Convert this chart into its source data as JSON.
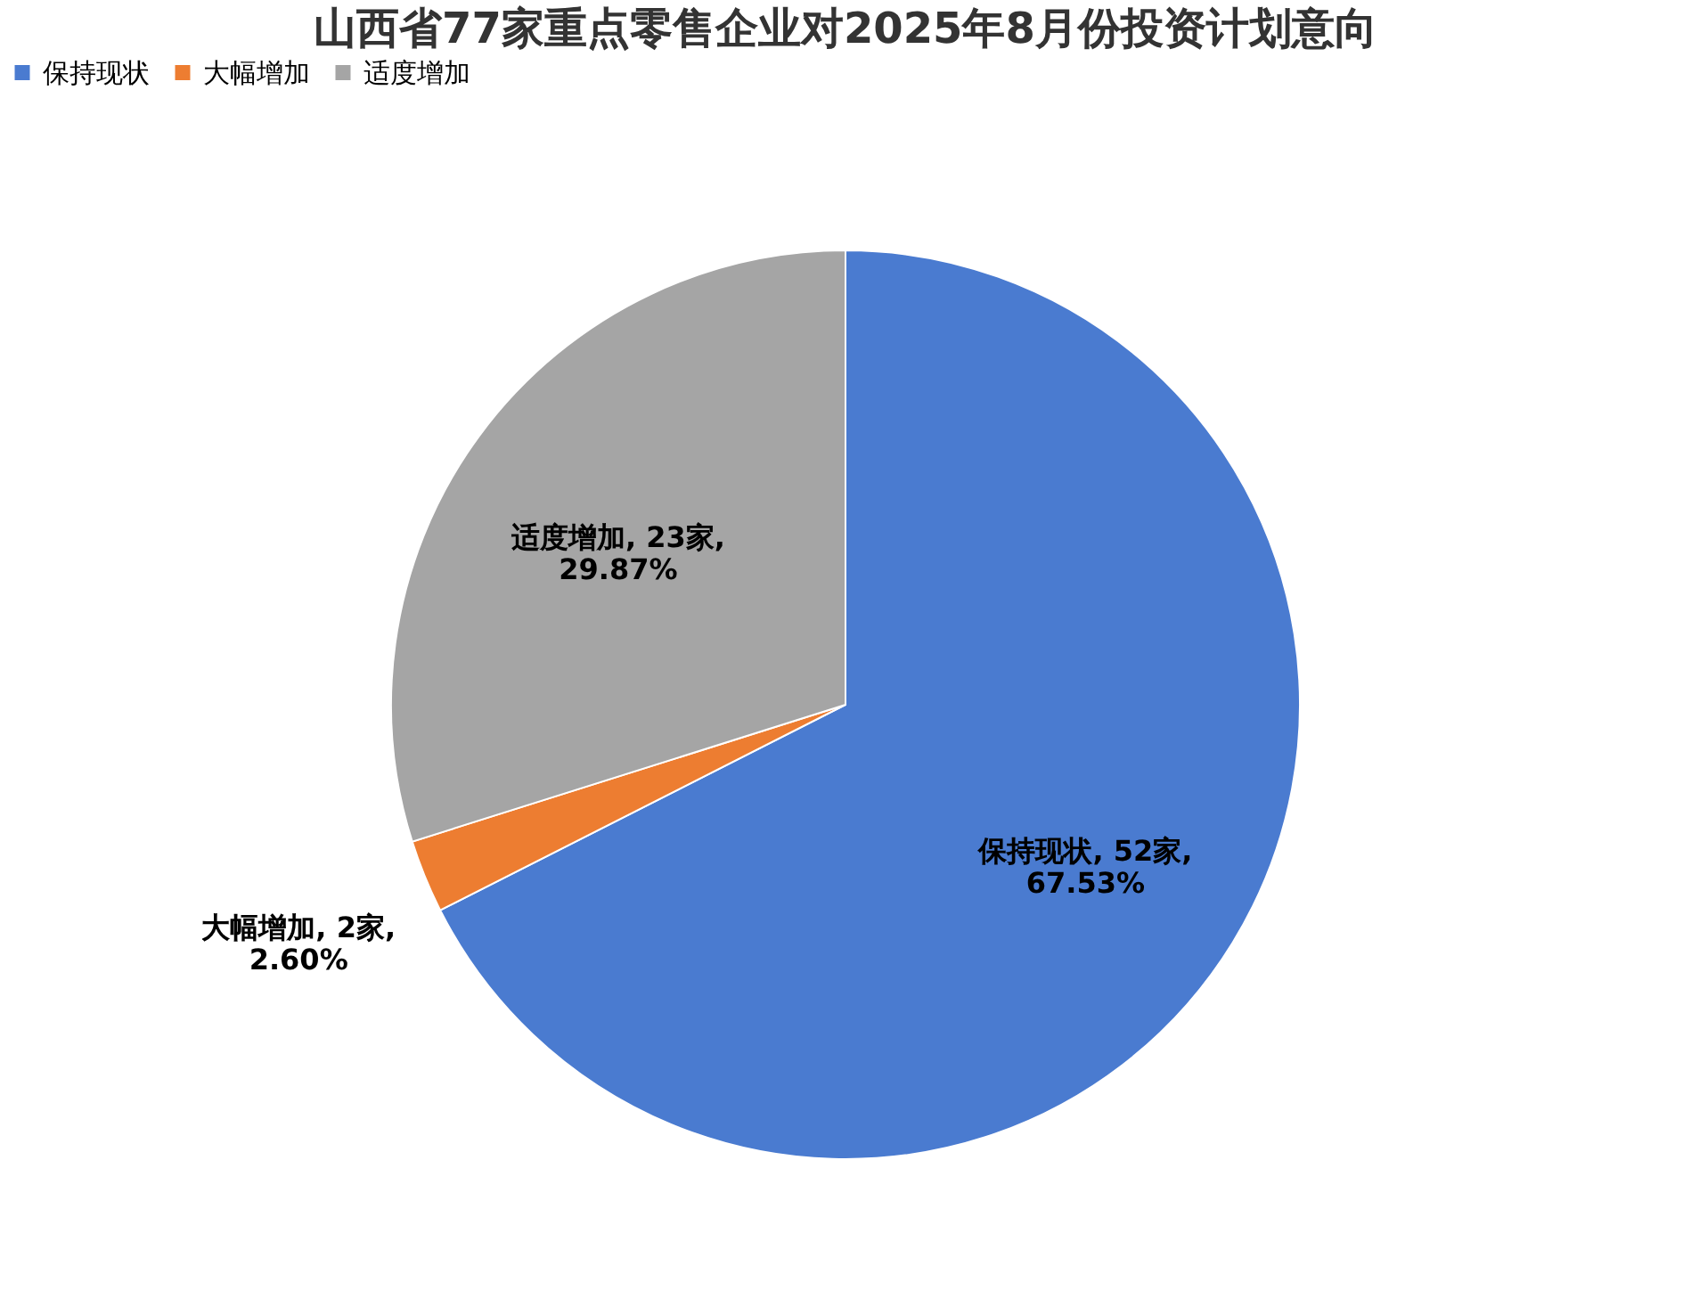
{
  "chart_data": {
    "type": "pie",
    "title": "山西省77家重点零售企业对2025年8月份投资计划意向",
    "categories": [
      "保持现状",
      "大幅增加",
      "适度增加"
    ],
    "values": [
      52,
      2,
      23
    ],
    "colors": [
      "#4a7bd0",
      "#ed7d31",
      "#a5a5a5"
    ],
    "value_labels": [
      "保持现状, 52家,\n67.53%",
      "大幅增加, 2家,\n2.60%",
      "适度增加, 23家,\n29.87%"
    ],
    "legend": "top"
  }
}
